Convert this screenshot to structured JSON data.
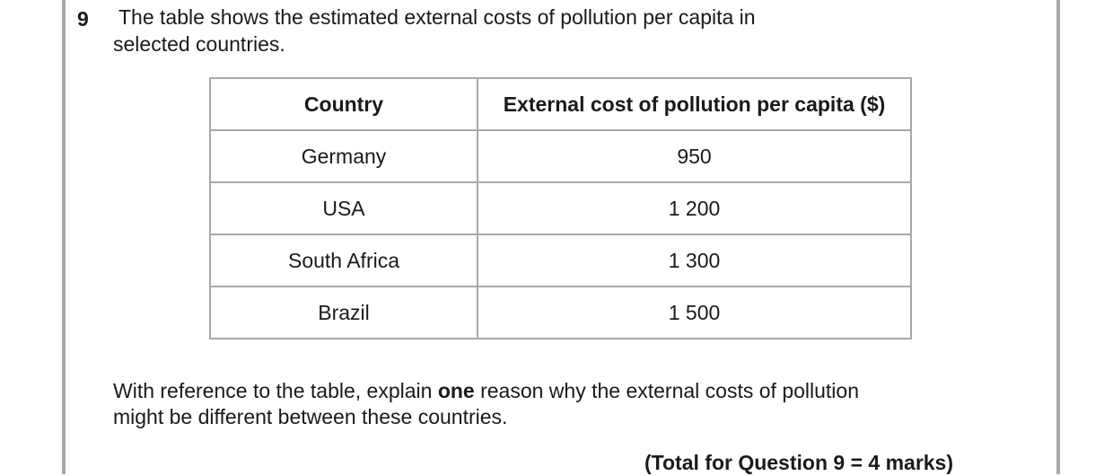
{
  "question": {
    "number": "9",
    "text_line1": "The table shows the estimated external costs of pollution per capita in",
    "text_line2": "selected countries."
  },
  "table": {
    "headers": [
      "Country",
      "External cost of pollution per capita ($)"
    ],
    "rows": [
      {
        "country": "Germany",
        "cost": "950"
      },
      {
        "country": "USA",
        "cost": "1 200"
      },
      {
        "country": "South Africa",
        "cost": "1 300"
      },
      {
        "country": "Brazil",
        "cost": "1 500"
      }
    ]
  },
  "instruction": {
    "part1": "With reference to the table, explain ",
    "bold": "one",
    "part2": " reason why the external costs of pollution",
    "line2": "might be different between these countries."
  },
  "total": "(Total for Question 9 = 4 marks)"
}
